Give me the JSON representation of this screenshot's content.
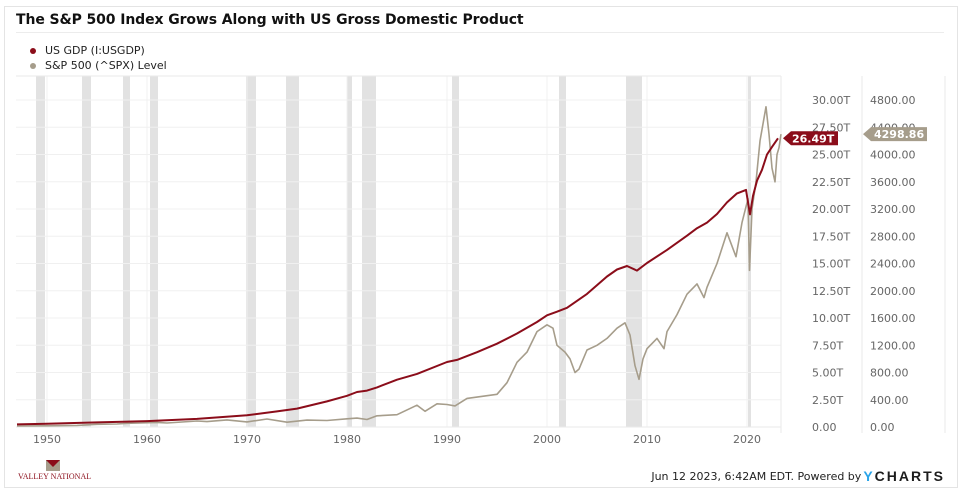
{
  "title": "The S&P 500 Index Grows Along with US Gross Domestic Product",
  "legend": [
    {
      "label": "US GDP (I:USGDP)",
      "color": "#8b0d1a"
    },
    {
      "label": "S&P 500 (^SPX) Level",
      "color": "#a69d8b"
    }
  ],
  "footer": {
    "timestamp": "Jun 12 2023, 6:42AM EDT.",
    "powered_by": "Powered by",
    "brand_y": "Y",
    "brand_rest": "CHARTS"
  },
  "logo": {
    "text": "VALLEY NATIONAL"
  },
  "chart_data": {
    "type": "line",
    "title": "The S&P 500 Index Grows Along with US Gross Domestic Product",
    "xlabel": "",
    "xlim": [
      1947,
      2023.4
    ],
    "x_ticks": [
      "1950",
      "1960",
      "1970",
      "1980",
      "1990",
      "2000",
      "2010",
      "2020"
    ],
    "x_tick_values": [
      1950,
      1960,
      1970,
      1980,
      1990,
      2000,
      2010,
      2020
    ],
    "left_axis": {
      "label": "US GDP",
      "ylim": [
        0,
        30
      ],
      "ticks": [
        "0.00",
        "2.50T",
        "5.00T",
        "7.50T",
        "10.00T",
        "12.50T",
        "15.00T",
        "17.50T",
        "20.00T",
        "22.50T",
        "25.00T",
        "27.50T",
        "30.00T"
      ],
      "tick_values": [
        0,
        2.5,
        5,
        7.5,
        10,
        12.5,
        15,
        17.5,
        20,
        22.5,
        25,
        27.5,
        30
      ]
    },
    "right_axis": {
      "label": "S&P 500 Level",
      "ylim": [
        0,
        4800
      ],
      "ticks": [
        "0.00",
        "400.00",
        "800.00",
        "1200.00",
        "1600.00",
        "2000.00",
        "2400.00",
        "2800.00",
        "3200.00",
        "3600.00",
        "4000.00",
        "4400.00",
        "4800.00"
      ],
      "tick_values": [
        0,
        400,
        800,
        1200,
        1600,
        2000,
        2400,
        2800,
        3200,
        3600,
        4000,
        4400,
        4800
      ]
    },
    "grid": true,
    "legend_position": "top-left",
    "recessions": [
      [
        1948.9,
        1949.8
      ],
      [
        1953.5,
        1954.4
      ],
      [
        1957.6,
        1958.3
      ],
      [
        1960.3,
        1961.1
      ],
      [
        1969.9,
        1970.9
      ],
      [
        1973.9,
        1975.2
      ],
      [
        1980.0,
        1980.5
      ],
      [
        1981.5,
        1982.9
      ],
      [
        1990.5,
        1991.2
      ],
      [
        2001.2,
        2001.9
      ],
      [
        2007.9,
        2009.5
      ],
      [
        2020.1,
        2020.4
      ]
    ],
    "series": [
      {
        "name": "US GDP (I:USGDP)",
        "axis": "left",
        "unit": "T",
        "last_value_label": "26.49T",
        "points": [
          [
            1947,
            0.24
          ],
          [
            1950,
            0.29
          ],
          [
            1955,
            0.42
          ],
          [
            1960,
            0.54
          ],
          [
            1965,
            0.74
          ],
          [
            1970,
            1.07
          ],
          [
            1973,
            1.43
          ],
          [
            1975,
            1.69
          ],
          [
            1978,
            2.35
          ],
          [
            1980,
            2.86
          ],
          [
            1981,
            3.21
          ],
          [
            1982,
            3.34
          ],
          [
            1983,
            3.63
          ],
          [
            1985,
            4.34
          ],
          [
            1987,
            4.87
          ],
          [
            1990,
            5.96
          ],
          [
            1991,
            6.16
          ],
          [
            1993,
            6.86
          ],
          [
            1995,
            7.64
          ],
          [
            1997,
            8.58
          ],
          [
            1999,
            9.63
          ],
          [
            2000,
            10.25
          ],
          [
            2001,
            10.58
          ],
          [
            2002,
            10.94
          ],
          [
            2004,
            12.21
          ],
          [
            2006,
            13.81
          ],
          [
            2007,
            14.45
          ],
          [
            2008,
            14.77
          ],
          [
            2009,
            14.35
          ],
          [
            2010,
            15.05
          ],
          [
            2012,
            16.25
          ],
          [
            2014,
            17.55
          ],
          [
            2015,
            18.24
          ],
          [
            2016,
            18.75
          ],
          [
            2017,
            19.54
          ],
          [
            2018,
            20.61
          ],
          [
            2019,
            21.43
          ],
          [
            2019.9,
            21.75
          ],
          [
            2020.3,
            19.5
          ],
          [
            2020.6,
            21.2
          ],
          [
            2021,
            22.6
          ],
          [
            2021.5,
            23.6
          ],
          [
            2022,
            25.0
          ],
          [
            2022.5,
            25.7
          ],
          [
            2023.1,
            26.49
          ]
        ]
      },
      {
        "name": "S&P 500 (^SPX) Level",
        "axis": "right",
        "last_value_label": "4298.86",
        "points": [
          [
            1947,
            15
          ],
          [
            1950,
            17
          ],
          [
            1953,
            24
          ],
          [
            1955,
            40
          ],
          [
            1957,
            44
          ],
          [
            1958,
            55
          ],
          [
            1961,
            68
          ],
          [
            1962,
            58
          ],
          [
            1965,
            88
          ],
          [
            1966,
            80
          ],
          [
            1968,
            104
          ],
          [
            1970,
            75
          ],
          [
            1972,
            118
          ],
          [
            1974,
            70
          ],
          [
            1976,
            102
          ],
          [
            1978,
            95
          ],
          [
            1980,
            120
          ],
          [
            1981,
            130
          ],
          [
            1982,
            110
          ],
          [
            1983,
            165
          ],
          [
            1985,
            180
          ],
          [
            1987,
            320
          ],
          [
            1987.8,
            230
          ],
          [
            1989,
            340
          ],
          [
            1990,
            330
          ],
          [
            1990.8,
            310
          ],
          [
            1992,
            420
          ],
          [
            1994,
            460
          ],
          [
            1995,
            480
          ],
          [
            1996,
            650
          ],
          [
            1997,
            950
          ],
          [
            1998,
            1100
          ],
          [
            1999,
            1400
          ],
          [
            2000,
            1500
          ],
          [
            2000.6,
            1450
          ],
          [
            2001,
            1200
          ],
          [
            2001.8,
            1100
          ],
          [
            2002.3,
            1000
          ],
          [
            2002.8,
            800
          ],
          [
            2003.2,
            850
          ],
          [
            2004,
            1130
          ],
          [
            2005,
            1200
          ],
          [
            2006,
            1300
          ],
          [
            2007,
            1450
          ],
          [
            2007.8,
            1530
          ],
          [
            2008.3,
            1350
          ],
          [
            2008.8,
            900
          ],
          [
            2009.2,
            700
          ],
          [
            2009.6,
            1000
          ],
          [
            2010,
            1150
          ],
          [
            2011,
            1300
          ],
          [
            2011.7,
            1150
          ],
          [
            2012,
            1400
          ],
          [
            2013,
            1650
          ],
          [
            2014,
            1950
          ],
          [
            2015,
            2100
          ],
          [
            2015.7,
            1900
          ],
          [
            2016,
            2050
          ],
          [
            2017,
            2400
          ],
          [
            2018,
            2850
          ],
          [
            2018.9,
            2500
          ],
          [
            2019.5,
            3000
          ],
          [
            2020.1,
            3350
          ],
          [
            2020.25,
            2300
          ],
          [
            2020.5,
            3200
          ],
          [
            2020.9,
            3600
          ],
          [
            2021.3,
            4200
          ],
          [
            2021.9,
            4700
          ],
          [
            2022.2,
            4300
          ],
          [
            2022.5,
            3800
          ],
          [
            2022.8,
            3600
          ],
          [
            2023.0,
            4000
          ],
          [
            2023.2,
            4100
          ],
          [
            2023.4,
            4298.86
          ]
        ]
      }
    ]
  }
}
